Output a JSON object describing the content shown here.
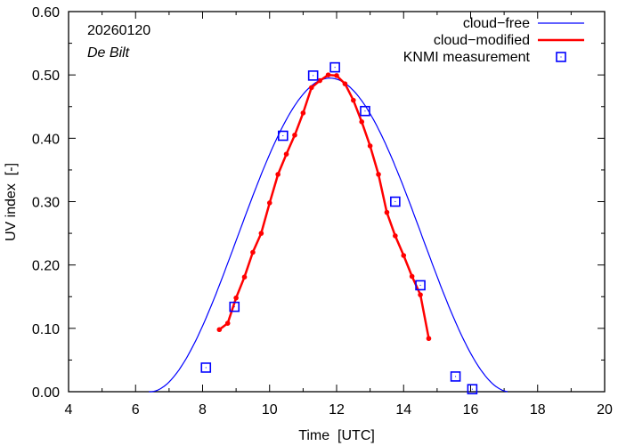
{
  "chart_data": {
    "type": "line",
    "title": "",
    "xlabel": "Time  [UTC]",
    "ylabel": "UV index  [-]",
    "xlim": [
      4,
      20
    ],
    "ylim": [
      0,
      0.6
    ],
    "xticks": [
      4,
      6,
      8,
      10,
      12,
      14,
      16,
      18,
      20
    ],
    "xtick_labels": [
      "4",
      "6",
      "8",
      "10",
      "12",
      "14",
      "16",
      "18",
      "20"
    ],
    "yticks": [
      0,
      0.1,
      0.2,
      0.3,
      0.4,
      0.5,
      0.6
    ],
    "ytick_labels": [
      "0.00",
      "0.10",
      "0.20",
      "0.30",
      "0.40",
      "0.50",
      "0.60"
    ],
    "grid": false,
    "annotations": {
      "date": "20260120",
      "location": "De Bilt"
    },
    "legend_position": "top-right",
    "series": [
      {
        "name": "cloud−free",
        "color": "#0000ff",
        "style": "line",
        "peak_time": 11.8,
        "peak_value": 0.495,
        "start_time": 6.4,
        "end_time": 17.1
      },
      {
        "name": "cloud−modified",
        "color": "#ff0000",
        "style": "line-points",
        "x": [
          8.5,
          8.75,
          9.0,
          9.25,
          9.5,
          9.75,
          10.0,
          10.25,
          10.5,
          10.75,
          11.0,
          11.25,
          11.5,
          11.75,
          12.0,
          12.25,
          12.5,
          12.75,
          13.0,
          13.25,
          13.5,
          13.75,
          14.0,
          14.25,
          14.5,
          14.75
        ],
        "y": [
          0.098,
          0.108,
          0.148,
          0.181,
          0.22,
          0.25,
          0.298,
          0.343,
          0.375,
          0.405,
          0.44,
          0.48,
          0.491,
          0.5,
          0.499,
          0.486,
          0.46,
          0.426,
          0.388,
          0.343,
          0.283,
          0.246,
          0.215,
          0.182,
          0.153,
          0.084
        ]
      },
      {
        "name": "KNMI measurement",
        "color": "#0000ff",
        "style": "squares",
        "x": [
          8.1,
          8.95,
          10.4,
          11.3,
          11.95,
          12.85,
          13.75,
          14.5,
          15.55,
          16.05
        ],
        "y": [
          0.038,
          0.134,
          0.404,
          0.499,
          0.512,
          0.443,
          0.3,
          0.168,
          0.024,
          0.004
        ]
      }
    ]
  }
}
